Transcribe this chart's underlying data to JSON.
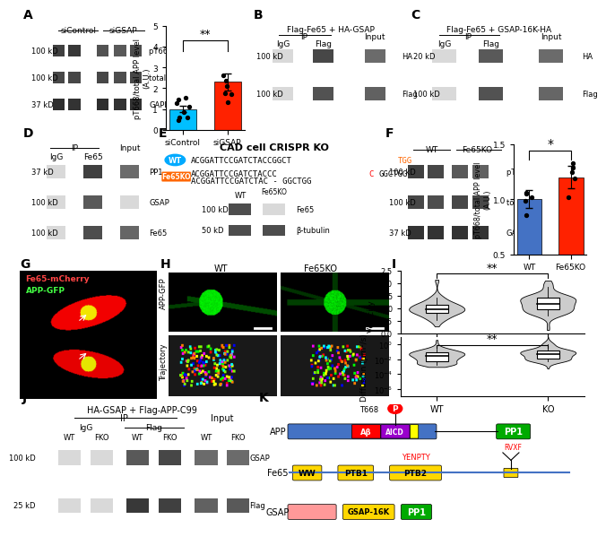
{
  "background_color": "#ffffff",
  "panel_font_size": 10,
  "panel_A": {
    "bar_colors": [
      "#00bfff",
      "#ff2200"
    ],
    "bar_labels": [
      "siControl",
      "siGSAP"
    ],
    "bar_values": [
      1.0,
      2.3
    ],
    "error_bars": [
      0.15,
      0.4
    ],
    "ylabel": "pT668/total APP level\n(A.U.)",
    "ylim": [
      0,
      5
    ],
    "yticks": [
      0,
      1,
      2,
      3,
      4,
      5
    ],
    "significance": "**",
    "wb_labels_left": [
      "100 kD",
      "100 kD",
      "37 kD"
    ],
    "wb_labels_right": [
      "pT668 APP",
      "total APP",
      "GAPDH"
    ],
    "wb_header": [
      "siControl",
      "siGSAP"
    ]
  },
  "panel_B": {
    "title": "Flag-Fe65 + HA-GSAP",
    "wb_labels_left": [
      "100 kD",
      "100 kD"
    ],
    "wb_labels_right": [
      "HA",
      "Flag"
    ]
  },
  "panel_C": {
    "title": "Flag-Fe65 + GSAP-16K-HA",
    "wb_labels_left": [
      "20 kD",
      "100 kD"
    ],
    "wb_labels_right": [
      "HA",
      "Flag"
    ]
  },
  "panel_D": {
    "wb_labels_left": [
      "37 kD",
      "100 kD",
      "100 kD"
    ],
    "wb_labels_right": [
      "PP1",
      "GSAP",
      "Fe65"
    ]
  },
  "panel_E": {
    "title": "CAD cell CRISPR KO",
    "wt_color": "#00aaff",
    "feko_color": "#ff6600",
    "highlight_color": "#ff6600",
    "mut_color": "#ff0000",
    "wb_labels_left": [
      "100 kD",
      "50 kD"
    ],
    "wb_labels_right": [
      "Fe65",
      "β-tubulin"
    ]
  },
  "panel_F": {
    "bar_colors": [
      "#4472c4",
      "#ff2200"
    ],
    "bar_labels": [
      "WT",
      "Fe65KO"
    ],
    "bar_values": [
      1.0,
      1.2
    ],
    "error_bars": [
      0.08,
      0.1
    ],
    "ylabel": "pT668/total APP level\n(A.U.)",
    "ylim": [
      0.5,
      1.5
    ],
    "yticks": [
      0.5,
      1.0,
      1.5
    ],
    "significance": "*",
    "wb_labels_left": [
      "100 kD",
      "100 kD",
      "37 kD"
    ],
    "wb_labels_right": [
      "pT668 APP",
      "total APP",
      "GAPDH"
    ],
    "wb_header": [
      "WT",
      "Fe65KO"
    ]
  },
  "panel_I_top": {
    "ylabel": "Velocity (μm/s)",
    "ylim": [
      0.0,
      2.5
    ],
    "yticks": [
      0.0,
      0.5,
      1.0,
      1.5,
      2.0,
      2.5
    ],
    "significance": "**",
    "groups": [
      "WT",
      "KO"
    ]
  },
  "panel_I_bot": {
    "ylabel": "Diffusion (μm²/s)",
    "significance": "**",
    "groups": [
      "WT",
      "KO"
    ],
    "ytick_labels": [
      "10⁻⁶",
      "10⁻⁴",
      "10⁻²",
      "10⁰"
    ]
  },
  "panel_J": {
    "title": "HA-GSAP + Flag-APP-C99",
    "wb_labels_left": [
      "100 kD",
      "25 kD"
    ],
    "wb_labels_right": [
      "GSAP",
      "Flag"
    ],
    "groups": [
      "WT",
      "FKO",
      "WT",
      "FKO",
      "WT",
      "FKO"
    ]
  },
  "panel_K": {
    "app_color": "#4472c4",
    "ab_color": "#ff0000",
    "aicd_color": "#9900cc",
    "c_color": "#ffff00",
    "pp1_color": "#00aa00",
    "fe65_line_color": "#4472c4",
    "ww_color": "#ffd700",
    "ptb1_color": "#ffd700",
    "ptb2_color": "#ffd700",
    "gsap_main_color": "#ff9999",
    "gsap_16k_color": "#ffd700",
    "gsap_pp1_color": "#00aa00",
    "fe65_connector_color": "#ffd700",
    "yenpty_color": "#ff0000",
    "rvxf_color": "#ff0000",
    "t668_color": "#ff0000",
    "phospho_color": "#ff0000"
  }
}
